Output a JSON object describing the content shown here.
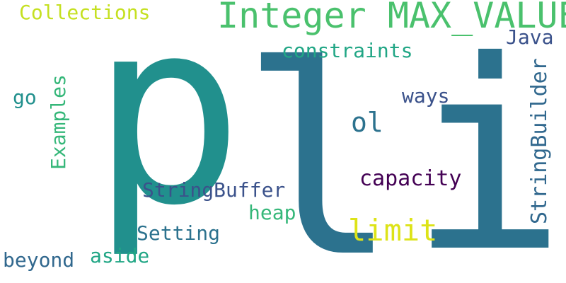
{
  "words": {
    "p": {
      "text": "p",
      "color": "#21908d"
    },
    "l": {
      "text": "l",
      "color": "#2c728e"
    },
    "i": {
      "text": "i",
      "color": "#2c728e"
    },
    "integer_max": {
      "text": "Integer MAX_VALUE",
      "color": "#4ac16d"
    },
    "collections": {
      "text": "Collections",
      "color": "#c5e021"
    },
    "java": {
      "text": "Java",
      "color": "#3b528b"
    },
    "constraints": {
      "text": "constraints",
      "color": "#21a685"
    },
    "ways": {
      "text": "ways",
      "color": "#3b528b"
    },
    "ol": {
      "text": "ol",
      "color": "#2c728e"
    },
    "examples": {
      "text": "Examples",
      "color": "#35b779"
    },
    "go": {
      "text": "go",
      "color": "#21908d"
    },
    "stringbuilder": {
      "text": "StringBuilder",
      "color": "#31688e"
    },
    "capacity": {
      "text": "capacity",
      "color": "#440154"
    },
    "stringbuffer": {
      "text": "StringBuffer",
      "color": "#3b528b"
    },
    "limit": {
      "text": "limit",
      "color": "#dde318"
    },
    "heap": {
      "text": "heap",
      "color": "#35b779"
    },
    "setting": {
      "text": "Setting",
      "color": "#2c728e"
    },
    "aside": {
      "text": "aside",
      "color": "#21a685"
    },
    "beyond": {
      "text": "beyond",
      "color": "#31688e"
    }
  }
}
